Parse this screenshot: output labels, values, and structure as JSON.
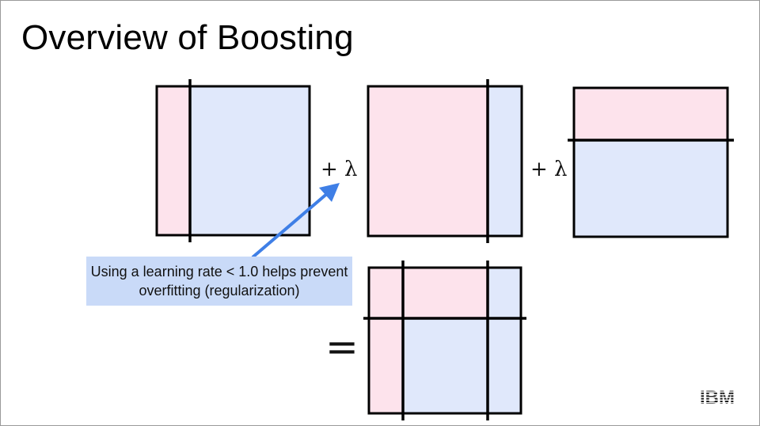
{
  "slide": {
    "title": "Overview of Boosting",
    "operator_1": "+ λ",
    "operator_2": "+ λ",
    "equals": "=",
    "callout": "Using a learning rate < 1.0 helps prevent overfitting (regularization)",
    "logo_text": "IBM"
  },
  "colors": {
    "region_pink": "#fde3ec",
    "region_blue": "#e0e8fb",
    "border": "#000000",
    "callout_bg": "#c9daf8",
    "arrow": "#3f7fe6"
  }
}
